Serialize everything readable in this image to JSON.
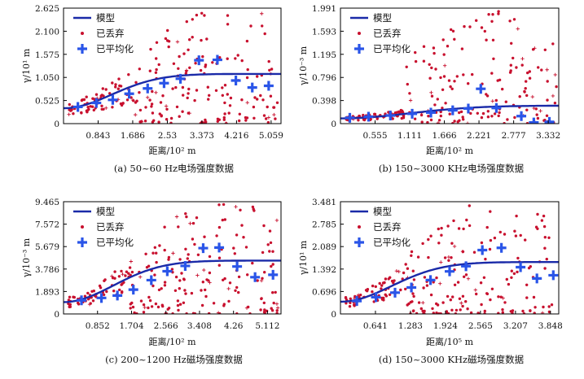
{
  "legend": {
    "model": "模型",
    "discarded": "已丢弃",
    "averaged": "已平均化"
  },
  "colors": {
    "model": "#1a2aa8",
    "discarded": "#c8102e",
    "averaged": "#2a55e8",
    "axis": "#000000"
  },
  "chart_data": [
    {
      "type": "scatter",
      "caption": "(a) 50~60 Hz电场强度数据",
      "xlabel": "距离/10² m",
      "ylabel": "γ/10¹ m",
      "xlim": [
        0,
        5.3
      ],
      "ylim": [
        0,
        2.625
      ],
      "xticks": [
        0.843,
        1.686,
        2.53,
        3.373,
        4.216,
        5.059
      ],
      "xtick_labels": [
        "0.843",
        "1.686",
        "2.53",
        "3.373",
        "4.216",
        "5.059"
      ],
      "yticks": [
        0,
        0.525,
        1.05,
        1.575,
        2.1,
        2.625
      ],
      "ytick_labels": [
        "0",
        "0.525",
        "1.050",
        "1.575",
        "2.100",
        "2.625"
      ],
      "model": {
        "c0": 0.35,
        "c": 0.78,
        "a": 1.65
      },
      "averaged": {
        "x": [
          0.35,
          0.8,
          1.2,
          1.6,
          2.05,
          2.45,
          2.85,
          3.3,
          3.75,
          4.2,
          4.6,
          5.0
        ],
        "y": [
          0.38,
          0.47,
          0.54,
          0.68,
          0.8,
          0.92,
          1.02,
          1.44,
          1.45,
          0.98,
          0.82,
          0.86
        ]
      },
      "discarded_seed": 11,
      "discarded_count": 230
    },
    {
      "type": "scatter",
      "caption": "(b) 150~3000 KHz电场强度数据",
      "xlabel": "距离/10² m",
      "ylabel": "γ/10⁻³ m",
      "xlim": [
        0,
        3.5
      ],
      "ylim": [
        0,
        1.991
      ],
      "xticks": [
        0.555,
        1.111,
        1.666,
        2.221,
        2.777,
        3.332
      ],
      "xtick_labels": [
        "0.555",
        "1.111",
        "1.666",
        "2.221",
        "2.777",
        "3.332"
      ],
      "yticks": [
        0,
        0.398,
        0.796,
        1.195,
        1.593,
        1.991
      ],
      "ytick_labels": [
        "0",
        "0.398",
        "0.796",
        "1.195",
        "1.593",
        "1.991"
      ],
      "model": {
        "c0": 0.09,
        "c": 0.22,
        "a": 1.55
      },
      "averaged": {
        "x": [
          0.15,
          0.45,
          0.8,
          1.15,
          1.45,
          1.8,
          2.05,
          2.25,
          2.5,
          2.9,
          3.1,
          3.35
        ],
        "y": [
          0.1,
          0.12,
          0.14,
          0.17,
          0.19,
          0.23,
          0.26,
          0.6,
          0.27,
          0.13,
          0.02,
          0.03
        ]
      },
      "discarded_seed": 23,
      "discarded_count": 230
    },
    {
      "type": "scatter",
      "caption": "(c) 200~1200 Hz磁场强度数据",
      "xlabel": "距离/10² m",
      "ylabel": "γ/10⁻³ m",
      "xlim": [
        0,
        5.45
      ],
      "ylim": [
        0,
        9.465
      ],
      "xticks": [
        0.852,
        1.704,
        2.566,
        3.408,
        4.26,
        5.112
      ],
      "xtick_labels": [
        "0.852",
        "1.704",
        "2.566",
        "3.408",
        "4.26",
        "5.112"
      ],
      "yticks": [
        0,
        1.893,
        3.786,
        5.679,
        7.572,
        9.465
      ],
      "ytick_labels": [
        "0",
        "1.893",
        "3.786",
        "5.679",
        "7.572",
        "9.465"
      ],
      "model": {
        "c0": 1.0,
        "c": 3.5,
        "a": 1.75
      },
      "averaged": {
        "x": [
          0.45,
          0.95,
          1.35,
          1.75,
          2.2,
          2.6,
          3.05,
          3.5,
          3.9,
          4.35,
          4.8,
          5.25
        ],
        "y": [
          1.15,
          1.35,
          1.55,
          2.05,
          2.85,
          3.6,
          4.05,
          5.55,
          5.6,
          4.0,
          3.1,
          3.3
        ]
      },
      "discarded_seed": 37,
      "discarded_count": 230
    },
    {
      "type": "scatter",
      "caption": "(d) 150~3000 KHz磁场强度数据",
      "xlabel": "距离/10⁵ m",
      "ylabel": "γ/10¹ m",
      "xlim": [
        0,
        4.0
      ],
      "ylim": [
        0,
        3.481
      ],
      "xticks": [
        0.641,
        1.283,
        1.924,
        2.565,
        3.207,
        3.848
      ],
      "xtick_labels": [
        "0.641",
        "1.283",
        "1.924",
        "2.565",
        "3.207",
        "3.848"
      ],
      "yticks": [
        0,
        0.696,
        1.392,
        2.089,
        2.785,
        3.481
      ],
      "ytick_labels": [
        "0",
        "0.696",
        "1.392",
        "2.089",
        "2.785",
        "3.481"
      ],
      "model": {
        "c0": 0.38,
        "c": 1.23,
        "a": 1.32
      },
      "averaged": {
        "x": [
          0.3,
          0.65,
          1.0,
          1.3,
          1.65,
          2.0,
          2.3,
          2.6,
          2.95,
          3.3,
          3.6,
          3.9
        ],
        "y": [
          0.4,
          0.52,
          0.66,
          0.82,
          1.05,
          1.32,
          1.48,
          1.98,
          2.05,
          1.45,
          1.1,
          1.2
        ]
      },
      "discarded_seed": 53,
      "discarded_count": 230
    }
  ]
}
